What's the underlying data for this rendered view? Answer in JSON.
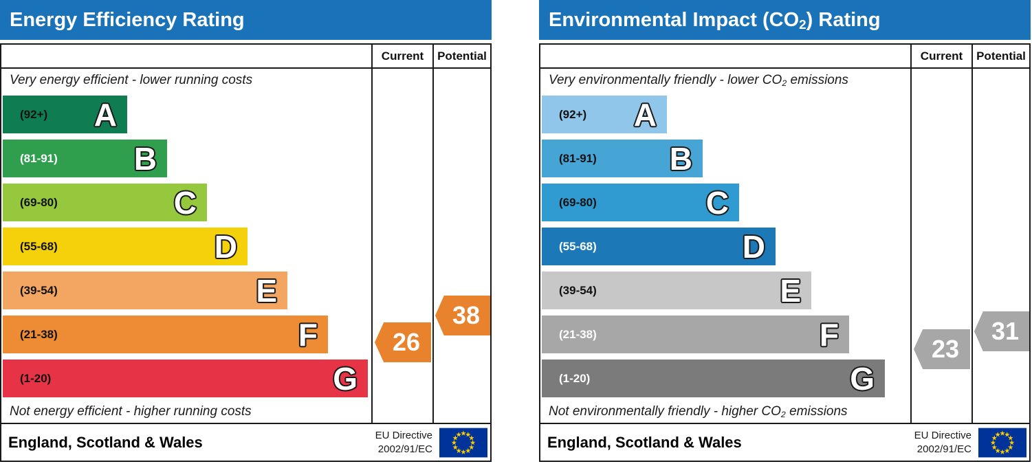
{
  "charts": [
    {
      "id": "energy-efficiency",
      "title_pre": "Energy Efficiency Rating",
      "title_sub": "",
      "title_post": "",
      "title_bar_color": "#1a72b8",
      "header": {
        "current_label": "Current",
        "potential_label": "Potential"
      },
      "top_caption": {
        "pre": "Very energy efficient - lower running costs",
        "sub": "",
        "post": ""
      },
      "bottom_caption": {
        "pre": "Not energy efficient - higher running costs",
        "sub": "",
        "post": ""
      },
      "footer": {
        "region": "England, Scotland & Wales",
        "directive_line1": "EU Directive",
        "directive_line2": "2002/91/EC",
        "flag_icon": "eu-flag",
        "flag_bg": "#003399",
        "flag_star": "#ffcc00"
      },
      "chart_data": {
        "type": "bar",
        "subtype": "epc-rating-bands",
        "value_range": [
          1,
          100
        ],
        "bands": [
          {
            "letter": "A",
            "range_label": "(92+)",
            "min": 92,
            "max": 100,
            "color": "#107c52",
            "label_color": "#111111",
            "width_pct": 33.5
          },
          {
            "letter": "B",
            "range_label": "(81-91)",
            "min": 81,
            "max": 91,
            "color": "#2f9f4e",
            "label_color": "#ffffff",
            "width_pct": 44.3
          },
          {
            "letter": "C",
            "range_label": "(69-80)",
            "min": 69,
            "max": 80,
            "color": "#95c83d",
            "label_color": "#111111",
            "width_pct": 55.0
          },
          {
            "letter": "D",
            "range_label": "(55-68)",
            "min": 55,
            "max": 68,
            "color": "#f5d10b",
            "label_color": "#111111",
            "width_pct": 65.9
          },
          {
            "letter": "E",
            "range_label": "(39-54)",
            "min": 39,
            "max": 54,
            "color": "#f3a661",
            "label_color": "#111111",
            "width_pct": 76.7
          },
          {
            "letter": "F",
            "range_label": "(21-38)",
            "min": 21,
            "max": 38,
            "color": "#ed8c35",
            "label_color": "#111111",
            "width_pct": 87.6
          },
          {
            "letter": "G",
            "range_label": "(1-20)",
            "min": 1,
            "max": 20,
            "color": "#e63345",
            "label_color": "#111111",
            "width_pct": 98.3
          }
        ],
        "current": {
          "value": 26,
          "band": "F",
          "arrow_color": "#e8822c"
        },
        "potential": {
          "value": 38,
          "band": "F",
          "arrow_color": "#e8822c"
        }
      }
    },
    {
      "id": "environmental-impact-co2",
      "title_pre": "Environmental Impact (CO",
      "title_sub": "2",
      "title_post": ") Rating",
      "title_bar_color": "#1a72b8",
      "header": {
        "current_label": "Current",
        "potential_label": "Potential"
      },
      "top_caption": {
        "pre": "Very environmentally friendly - lower CO",
        "sub": "2",
        "post": " emissions"
      },
      "bottom_caption": {
        "pre": "Not environmentally friendly - higher CO",
        "sub": "2",
        "post": " emissions"
      },
      "footer": {
        "region": "England, Scotland & Wales",
        "directive_line1": "EU Directive",
        "directive_line2": "2002/91/EC",
        "flag_icon": "eu-flag",
        "flag_bg": "#003399",
        "flag_star": "#ffcc00"
      },
      "chart_data": {
        "type": "bar",
        "subtype": "epc-rating-bands",
        "value_range": [
          1,
          100
        ],
        "bands": [
          {
            "letter": "A",
            "range_label": "(92+)",
            "min": 92,
            "max": 100,
            "color": "#8fc6e9",
            "label_color": "#111111",
            "width_pct": 33.7
          },
          {
            "letter": "B",
            "range_label": "(81-91)",
            "min": 81,
            "max": 91,
            "color": "#47a5d5",
            "label_color": "#111111",
            "width_pct": 43.3
          },
          {
            "letter": "C",
            "range_label": "(69-80)",
            "min": 69,
            "max": 80,
            "color": "#2f9bd0",
            "label_color": "#111111",
            "width_pct": 53.1
          },
          {
            "letter": "D",
            "range_label": "(55-68)",
            "min": 55,
            "max": 68,
            "color": "#1c78b7",
            "label_color": "#ffffff",
            "width_pct": 63.0
          },
          {
            "letter": "E",
            "range_label": "(39-54)",
            "min": 39,
            "max": 54,
            "color": "#c7c7c7",
            "label_color": "#111111",
            "width_pct": 72.6
          },
          {
            "letter": "F",
            "range_label": "(21-38)",
            "min": 21,
            "max": 38,
            "color": "#a7a7a7",
            "label_color": "#ffffff",
            "width_pct": 82.8
          },
          {
            "letter": "G",
            "range_label": "(1-20)",
            "min": 1,
            "max": 20,
            "color": "#7b7b7b",
            "label_color": "#ffffff",
            "width_pct": 92.4
          }
        ],
        "current": {
          "value": 23,
          "band": "F",
          "arrow_color": "#a7a7a7"
        },
        "potential": {
          "value": 31,
          "band": "F",
          "arrow_color": "#a7a7a7"
        }
      }
    }
  ]
}
